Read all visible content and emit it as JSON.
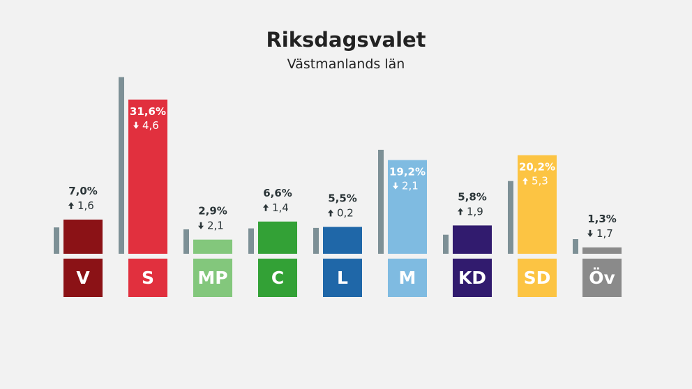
{
  "title": "Riksdagsvalet",
  "subtitle": "Västmanlands län",
  "chart_data": {
    "type": "bar",
    "title": "Riksdagsvalet",
    "subtitle": "Västmanlands län",
    "categories": [
      "V",
      "S",
      "MP",
      "C",
      "L",
      "M",
      "KD",
      "SD",
      "Öv"
    ],
    "series": [
      {
        "values": [
          7.0,
          31.6,
          2.9,
          6.6,
          5.5,
          19.2,
          5.8,
          20.2,
          1.3
        ]
      },
      {
        "values": [
          5.4,
          36.2,
          5.0,
          5.2,
          5.3,
          21.3,
          3.9,
          14.9,
          3.0
        ]
      }
    ],
    "percent_labels": [
      "7,0%",
      "31,6%",
      "2,9%",
      "6,6%",
      "5,5%",
      "19,2%",
      "5,8%",
      "20,2%",
      "1,3%"
    ],
    "change_labels": [
      "1,6",
      "4,6",
      "2,1",
      "1,4",
      "0,2",
      "2,1",
      "1,9",
      "5,3",
      "1,7"
    ],
    "change_direction": [
      "up",
      "down",
      "down",
      "up",
      "up",
      "down",
      "up",
      "up",
      "down"
    ],
    "colors": [
      "#8b1216",
      "#e1303e",
      "#83c77c",
      "#33a136",
      "#1f67a8",
      "#7fbbe1",
      "#311b6e",
      "#fcc443",
      "#8a8a8a"
    ],
    "previous_color": "#7d9096",
    "label_inside": [
      false,
      true,
      false,
      false,
      false,
      true,
      false,
      true,
      false
    ]
  }
}
